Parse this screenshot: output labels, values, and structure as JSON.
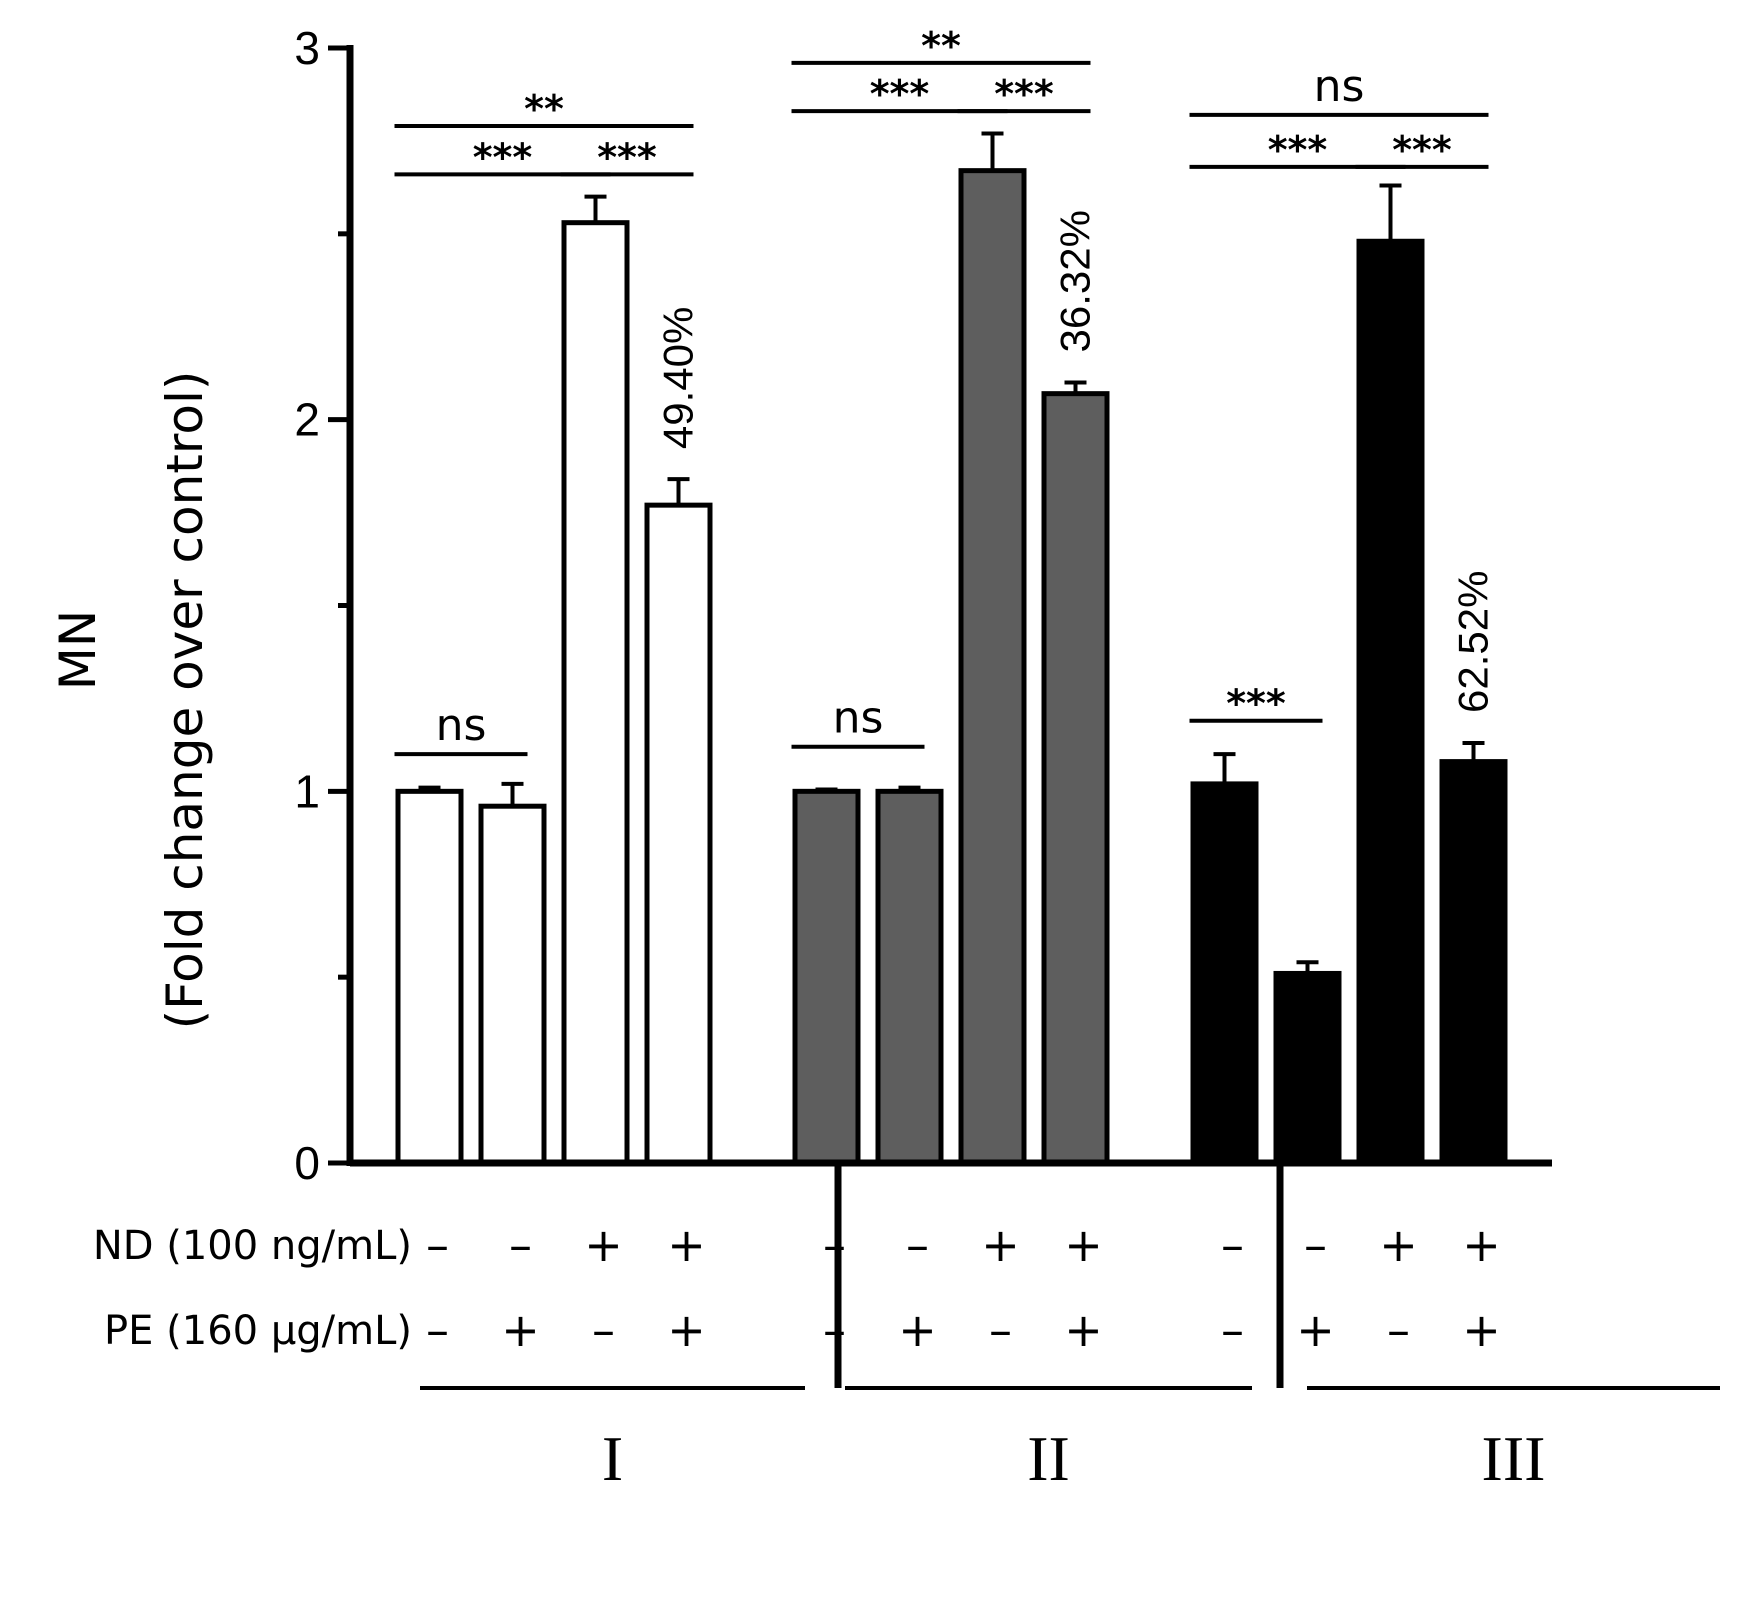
{
  "chart_data": {
    "type": "bar",
    "ylabel_line1": "MN",
    "ylabel_line2": "(Fold change over control)",
    "ylim": [
      0,
      3
    ],
    "yticks": [
      0,
      1,
      2,
      3
    ],
    "ytick_labels": [
      "0",
      "1",
      "2",
      "3"
    ],
    "minor_yticks": [
      0.5,
      1.5,
      2.5
    ],
    "rows": [
      {
        "label": "ND (100 ng/mL)",
        "signs": [
          "–",
          "–",
          "+",
          "+",
          "–",
          "–",
          "+",
          "+",
          "–",
          "–",
          "+",
          "+"
        ]
      },
      {
        "label": "PE (160 μg/mL)",
        "signs": [
          "–",
          "+",
          "–",
          "+",
          "–",
          "+",
          "–",
          "+",
          "–",
          "+",
          "–",
          "+"
        ]
      }
    ],
    "groups": [
      {
        "name": "I",
        "fill": "#ffffff",
        "values": [
          1.0,
          0.96,
          2.53,
          1.77
        ],
        "errors": [
          0.01,
          0.06,
          0.07,
          0.07
        ],
        "percent": "49.40%"
      },
      {
        "name": "II",
        "fill": "#5e5e5e",
        "values": [
          1.0,
          1.0,
          2.67,
          2.07
        ],
        "errors": [
          0.005,
          0.01,
          0.1,
          0.03
        ],
        "percent": "36.32%"
      },
      {
        "name": "III",
        "fill": "#000000",
        "values": [
          1.02,
          0.51,
          2.48,
          1.08
        ],
        "errors": [
          0.08,
          0.03,
          0.15,
          0.05
        ],
        "percent": "62.52%"
      }
    ],
    "significance": [
      {
        "group": 0,
        "from": 0,
        "to": 1,
        "y": 1.1,
        "label": "ns",
        "kind": "ns"
      },
      {
        "group": 0,
        "from": 0,
        "to": 2,
        "y": 2.66,
        "label": "***",
        "kind": "star"
      },
      {
        "group": 0,
        "from": 2,
        "to": 3,
        "y": 2.66,
        "label": "***",
        "kind": "star"
      },
      {
        "group": 0,
        "from": 0,
        "to": 3,
        "y": 2.79,
        "label": "**",
        "kind": "star"
      },
      {
        "group": 1,
        "from": 0,
        "to": 1,
        "y": 1.12,
        "label": "ns",
        "kind": "ns"
      },
      {
        "group": 1,
        "from": 0,
        "to": 2,
        "y": 2.83,
        "label": "***",
        "kind": "star"
      },
      {
        "group": 1,
        "from": 2,
        "to": 3,
        "y": 2.83,
        "label": "***",
        "kind": "star"
      },
      {
        "group": 1,
        "from": 0,
        "to": 3,
        "y": 2.96,
        "label": "**",
        "kind": "star"
      },
      {
        "group": 2,
        "from": 0,
        "to": 1,
        "y": 1.19,
        "label": "***",
        "kind": "star"
      },
      {
        "group": 2,
        "from": 0,
        "to": 2,
        "y": 2.68,
        "label": "***",
        "kind": "star"
      },
      {
        "group": 2,
        "from": 2,
        "to": 3,
        "y": 2.68,
        "label": "***",
        "kind": "star"
      },
      {
        "group": 2,
        "from": 0,
        "to": 3,
        "y": 2.82,
        "label": "ns",
        "kind": "ns"
      }
    ]
  }
}
